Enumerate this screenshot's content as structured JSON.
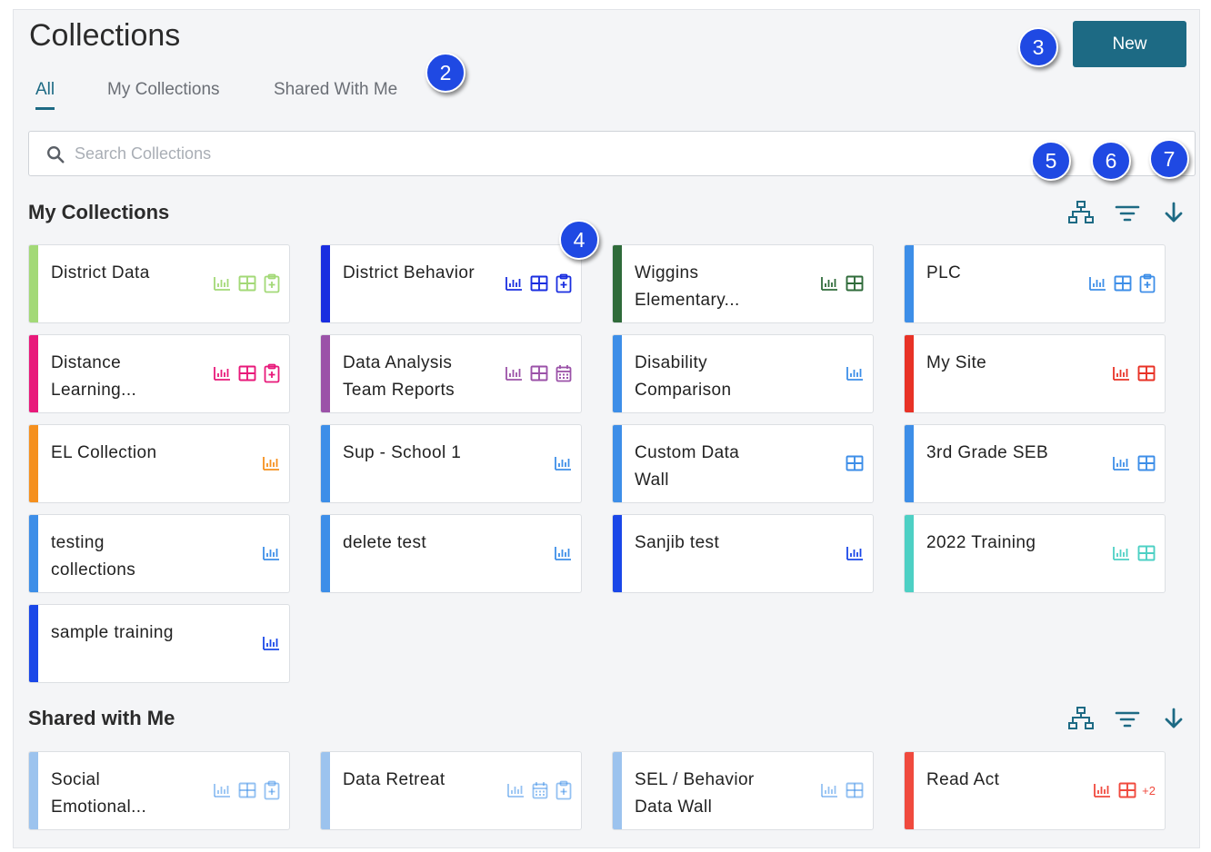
{
  "page": {
    "title": "Collections"
  },
  "header": {
    "new_label": "New"
  },
  "tabs": [
    {
      "label": "All",
      "active": true
    },
    {
      "label": "My Collections",
      "active": false
    },
    {
      "label": "Shared With Me",
      "active": false
    }
  ],
  "search": {
    "placeholder": "Search Collections",
    "value": ""
  },
  "sections": {
    "my_collections": {
      "title": "My Collections"
    },
    "shared_with_me": {
      "title": "Shared with Me"
    }
  },
  "toolbar_icons": [
    "hierarchy-icon",
    "filter-icon",
    "sort-down-icon"
  ],
  "my_collections": [
    {
      "name": "District Data",
      "color": "#a3d977",
      "icons": [
        "chart",
        "table",
        "assessment"
      ]
    },
    {
      "name": "District Behavior",
      "color": "#1a2ee0",
      "icons": [
        "chart",
        "table",
        "assessment"
      ]
    },
    {
      "name": "Wiggins Elementary...",
      "color": "#2f6b3a",
      "icons": [
        "chart",
        "table"
      ]
    },
    {
      "name": "PLC",
      "color": "#3d8ee8",
      "icons": [
        "chart",
        "table",
        "assessment"
      ]
    },
    {
      "name": "Distance Learning...",
      "color": "#e8197a",
      "icons": [
        "chart",
        "table",
        "assessment"
      ]
    },
    {
      "name": "Data Analysis Team Reports",
      "color": "#9b52a8",
      "icons": [
        "chart",
        "table",
        "calendar"
      ]
    },
    {
      "name": "Disability Comparison",
      "color": "#3d8ee8",
      "icons": [
        "chart"
      ]
    },
    {
      "name": "My Site",
      "color": "#e83226",
      "icons": [
        "chart",
        "table"
      ]
    },
    {
      "name": "EL Collection",
      "color": "#f5901e",
      "icons": [
        "chart"
      ]
    },
    {
      "name": "Sup - School 1",
      "color": "#3d8ee8",
      "icons": [
        "chart"
      ]
    },
    {
      "name": "Custom Data Wall",
      "color": "#3d8ee8",
      "icons": [
        "table"
      ]
    },
    {
      "name": "3rd Grade SEB",
      "color": "#3d8ee8",
      "icons": [
        "chart",
        "table"
      ]
    },
    {
      "name": "testing collections",
      "color": "#3d8ee8",
      "icons": [
        "chart"
      ]
    },
    {
      "name": "delete test",
      "color": "#3d8ee8",
      "icons": [
        "chart"
      ]
    },
    {
      "name": "Sanjib test",
      "color": "#1a47e8",
      "icons": [
        "chart"
      ]
    },
    {
      "name": "2022 Training",
      "color": "#4dd0c4",
      "icons": [
        "chart",
        "table"
      ]
    },
    {
      "name": "sample training",
      "color": "#1a47e8",
      "icons": [
        "chart"
      ]
    }
  ],
  "shared_collections": [
    {
      "name": "Social Emotional...",
      "color": "#9cc3ee",
      "icons": [
        "chart",
        "table",
        "assessment"
      ]
    },
    {
      "name": "Data Retreat",
      "color": "#9cc3ee",
      "icons": [
        "chart",
        "calendar",
        "assessment"
      ]
    },
    {
      "name": "SEL / Behavior Data Wall",
      "color": "#9cc3ee",
      "icons": [
        "chart",
        "table"
      ]
    },
    {
      "name": "Read Act",
      "color": "#f04a3e",
      "icons": [
        "chart",
        "table"
      ],
      "extra": "+2"
    }
  ],
  "annotations": [
    "2",
    "3",
    "4",
    "5",
    "6",
    "7"
  ]
}
